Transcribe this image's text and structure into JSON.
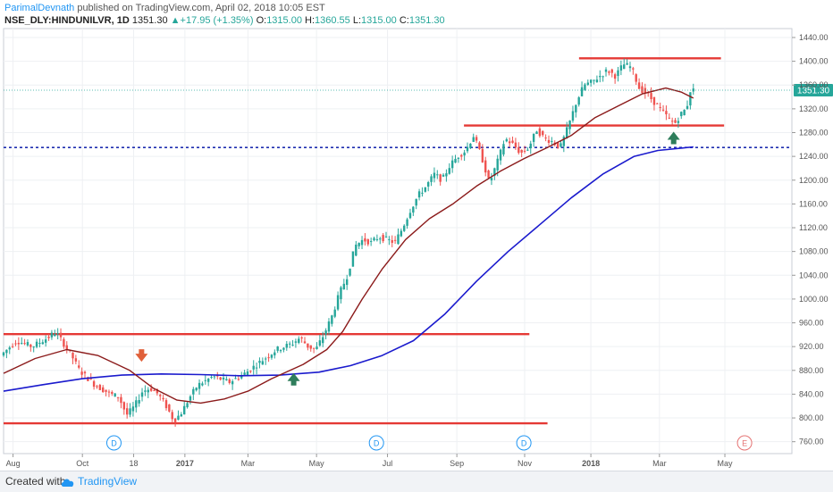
{
  "header": {
    "author": "ParimalDevnath",
    "published_text": " published on TradingView.com, April 02, 2018 10:05 EST"
  },
  "symbol_line": {
    "symbol": "NSE_DLY:HINDUNILVR, 1D",
    "last": "1351.30",
    "change": "+17.95 (+1.35%)",
    "open_label": "O:",
    "open": "1315.00",
    "high_label": "H:",
    "high": "1360.55",
    "low_label": "L:",
    "low": "1315.00",
    "close_label": "C:",
    "close": "1351.30"
  },
  "footer": {
    "created_with": "Created with",
    "brand": "TradingView"
  },
  "colors": {
    "up_candle": "#26a69a",
    "down_candle": "#ef5350",
    "red_line": "#e53935",
    "ma_blue": "#1a1acd",
    "ma_darkred": "#8b1a1a",
    "price_line": "#26a69a",
    "dotted_blue": "#1f2fb0",
    "arrow_green": "#2e7d5b",
    "arrow_red": "#e0603a",
    "price_badge": "#26a69a"
  },
  "chart_data": {
    "type": "candlestick",
    "y_axis": {
      "ticks": [
        760,
        800,
        840,
        880,
        920,
        960,
        1000,
        1040,
        1080,
        1120,
        1160,
        1200,
        1240,
        1280,
        1320,
        1360,
        1400,
        1440
      ],
      "range": [
        740,
        1455
      ]
    },
    "x_axis": {
      "labels": [
        "Aug",
        "Oct",
        "18",
        "2017",
        "Mar",
        "May",
        "Jul",
        "Sep",
        "Nov",
        "2018",
        "Mar",
        "May"
      ]
    },
    "last_price": {
      "label": "1351.30",
      "value": 1351.3
    },
    "horizontal_levels": [
      {
        "name": "support-low",
        "y": 791,
        "x_start": 0.0,
        "x_end": 0.69,
        "style": "solid-red"
      },
      {
        "name": "resistance-960",
        "y": 941,
        "x_start": 0.0,
        "x_end": 0.667,
        "style": "solid-red"
      },
      {
        "name": "resistance-1290",
        "y": 1292,
        "x_start": 0.584,
        "x_end": 0.914,
        "style": "solid-red"
      },
      {
        "name": "channel-top",
        "y": 1405,
        "x_start": 0.73,
        "x_end": 0.91,
        "style": "solid-red"
      },
      {
        "name": "dotted-level",
        "y": 1255,
        "x_start": 0.0,
        "x_end": 1.0,
        "style": "dotted-blue"
      }
    ],
    "ma_long": [
      [
        0.0,
        845
      ],
      [
        0.05,
        856
      ],
      [
        0.1,
        866
      ],
      [
        0.15,
        872
      ],
      [
        0.2,
        874
      ],
      [
        0.25,
        873
      ],
      [
        0.3,
        871
      ],
      [
        0.35,
        872
      ],
      [
        0.4,
        877
      ],
      [
        0.44,
        888
      ],
      [
        0.48,
        905
      ],
      [
        0.52,
        930
      ],
      [
        0.56,
        975
      ],
      [
        0.6,
        1030
      ],
      [
        0.64,
        1080
      ],
      [
        0.68,
        1125
      ],
      [
        0.72,
        1170
      ],
      [
        0.76,
        1210
      ],
      [
        0.8,
        1240
      ],
      [
        0.83,
        1250
      ],
      [
        0.875,
        1256
      ]
    ],
    "ma_mid": [
      [
        0.0,
        875
      ],
      [
        0.04,
        900
      ],
      [
        0.08,
        915
      ],
      [
        0.12,
        905
      ],
      [
        0.16,
        880
      ],
      [
        0.19,
        850
      ],
      [
        0.22,
        830
      ],
      [
        0.25,
        825
      ],
      [
        0.28,
        832
      ],
      [
        0.31,
        845
      ],
      [
        0.34,
        866
      ],
      [
        0.38,
        890
      ],
      [
        0.41,
        915
      ],
      [
        0.43,
        945
      ],
      [
        0.455,
        1000
      ],
      [
        0.48,
        1050
      ],
      [
        0.51,
        1100
      ],
      [
        0.54,
        1135
      ],
      [
        0.57,
        1160
      ],
      [
        0.6,
        1190
      ],
      [
        0.63,
        1215
      ],
      [
        0.66,
        1236
      ],
      [
        0.69,
        1255
      ],
      [
        0.72,
        1275
      ],
      [
        0.75,
        1305
      ],
      [
        0.78,
        1325
      ],
      [
        0.81,
        1345
      ],
      [
        0.84,
        1355
      ],
      [
        0.86,
        1348
      ],
      [
        0.875,
        1338
      ]
    ],
    "price_path": [
      [
        0.0,
        905
      ],
      [
        0.02,
        930
      ],
      [
        0.04,
        920
      ],
      [
        0.06,
        935
      ],
      [
        0.07,
        945
      ],
      [
        0.08,
        925
      ],
      [
        0.09,
        905
      ],
      [
        0.1,
        880
      ],
      [
        0.12,
        855
      ],
      [
        0.14,
        840
      ],
      [
        0.15,
        835
      ],
      [
        0.16,
        805
      ],
      [
        0.17,
        820
      ],
      [
        0.18,
        845
      ],
      [
        0.19,
        850
      ],
      [
        0.2,
        840
      ],
      [
        0.21,
        820
      ],
      [
        0.22,
        795
      ],
      [
        0.23,
        810
      ],
      [
        0.24,
        835
      ],
      [
        0.25,
        855
      ],
      [
        0.27,
        870
      ],
      [
        0.29,
        860
      ],
      [
        0.31,
        875
      ],
      [
        0.33,
        895
      ],
      [
        0.35,
        915
      ],
      [
        0.37,
        925
      ],
      [
        0.38,
        935
      ],
      [
        0.39,
        920
      ],
      [
        0.4,
        915
      ],
      [
        0.41,
        940
      ],
      [
        0.42,
        970
      ],
      [
        0.43,
        1010
      ],
      [
        0.44,
        1040
      ],
      [
        0.45,
        1090
      ],
      [
        0.46,
        1100
      ],
      [
        0.47,
        1095
      ],
      [
        0.48,
        1105
      ],
      [
        0.49,
        1100
      ],
      [
        0.5,
        1095
      ],
      [
        0.51,
        1120
      ],
      [
        0.52,
        1150
      ],
      [
        0.53,
        1175
      ],
      [
        0.54,
        1190
      ],
      [
        0.55,
        1210
      ],
      [
        0.56,
        1200
      ],
      [
        0.57,
        1225
      ],
      [
        0.58,
        1240
      ],
      [
        0.59,
        1250
      ],
      [
        0.6,
        1275
      ],
      [
        0.61,
        1240
      ],
      [
        0.62,
        1195
      ],
      [
        0.63,
        1230
      ],
      [
        0.64,
        1270
      ],
      [
        0.65,
        1260
      ],
      [
        0.66,
        1245
      ],
      [
        0.67,
        1255
      ],
      [
        0.68,
        1285
      ],
      [
        0.69,
        1270
      ],
      [
        0.7,
        1265
      ],
      [
        0.71,
        1255
      ],
      [
        0.72,
        1290
      ],
      [
        0.73,
        1330
      ],
      [
        0.74,
        1360
      ],
      [
        0.75,
        1365
      ],
      [
        0.76,
        1375
      ],
      [
        0.77,
        1385
      ],
      [
        0.78,
        1375
      ],
      [
        0.79,
        1395
      ],
      [
        0.8,
        1390
      ],
      [
        0.81,
        1355
      ],
      [
        0.82,
        1345
      ],
      [
        0.83,
        1330
      ],
      [
        0.84,
        1315
      ],
      [
        0.85,
        1300
      ],
      [
        0.855,
        1295
      ],
      [
        0.86,
        1305
      ],
      [
        0.865,
        1315
      ],
      [
        0.87,
        1320
      ],
      [
        0.875,
        1351
      ]
    ]
  }
}
